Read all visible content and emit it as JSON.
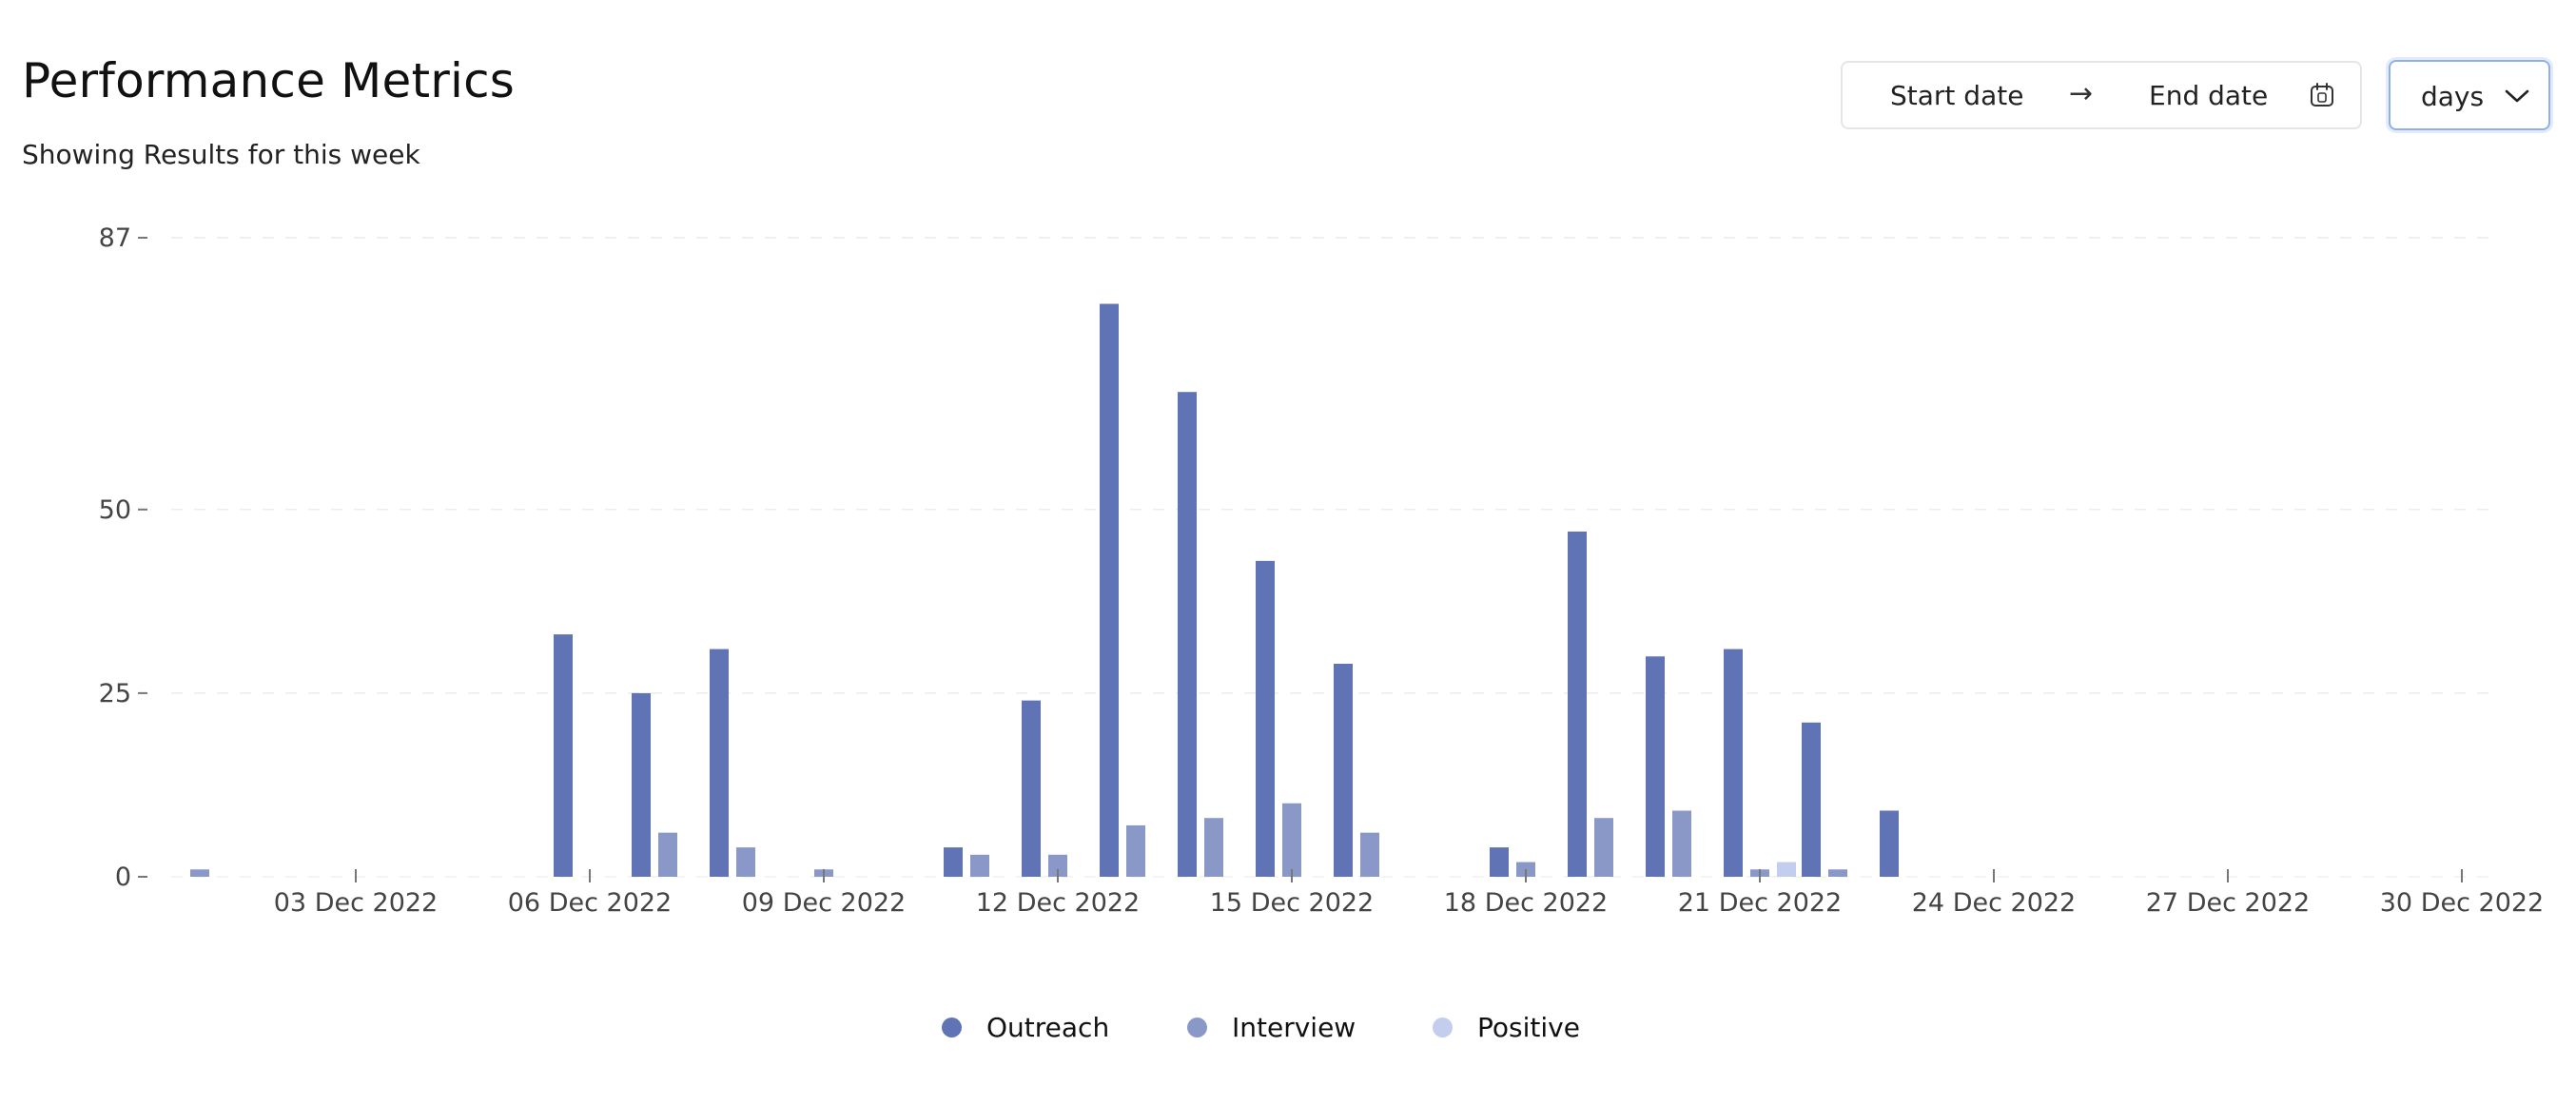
{
  "header": {
    "title": "Performance Metrics",
    "subtitle": "Showing Results for this week"
  },
  "controls": {
    "start_date": "Start date",
    "arrow": "→",
    "end_date": "End date",
    "calendar_icon": "calendar-icon",
    "granularity": "days",
    "dropdown_icon": "chevron-down-icon",
    "accent_border": "#8fb0ea"
  },
  "chart_data": {
    "type": "bar",
    "x": [
      "01 Dec 2022",
      "02 Dec 2022",
      "03 Dec 2022",
      "04 Dec 2022",
      "05 Dec 2022",
      "06 Dec 2022",
      "07 Dec 2022",
      "08 Dec 2022",
      "09 Dec 2022",
      "10 Dec 2022",
      "11 Dec 2022",
      "12 Dec 2022",
      "13 Dec 2022",
      "14 Dec 2022",
      "15 Dec 2022",
      "16 Dec 2022",
      "17 Dec 2022",
      "18 Dec 2022",
      "19 Dec 2022",
      "20 Dec 2022",
      "21 Dec 2022",
      "22 Dec 2022",
      "23 Dec 2022",
      "24 Dec 2022",
      "25 Dec 2022",
      "26 Dec 2022",
      "27 Dec 2022",
      "28 Dec 2022",
      "29 Dec 2022",
      "30 Dec 2022",
      "31 Dec 2022"
    ],
    "series": [
      {
        "name": "Outreach",
        "color": "#6073b4",
        "values": [
          0,
          0,
          0,
          0,
          0,
          33,
          25,
          31,
          0,
          0,
          4,
          24,
          78,
          66,
          43,
          29,
          0,
          4,
          47,
          30,
          31,
          21,
          9,
          0,
          0,
          0,
          0,
          0,
          0,
          0,
          0
        ]
      },
      {
        "name": "Interview",
        "color": "#8a98c8",
        "values": [
          1,
          0,
          0,
          0,
          0,
          0,
          6,
          4,
          1,
          0,
          3,
          3,
          7,
          8,
          10,
          6,
          0,
          2,
          8,
          9,
          1,
          1,
          0,
          0,
          0,
          0,
          0,
          0,
          0,
          0,
          0
        ]
      },
      {
        "name": "Positive",
        "color": "#c3cdee",
        "values": [
          0,
          0,
          0,
          0,
          0,
          0,
          0,
          0,
          0,
          0,
          0,
          0,
          0,
          0,
          0,
          0,
          0,
          0,
          0,
          0,
          2,
          0,
          0,
          0,
          0,
          0,
          0,
          0,
          0,
          0,
          0
        ]
      }
    ],
    "x_ticks": [
      "03 Dec 2022",
      "06 Dec 2022",
      "09 Dec 2022",
      "12 Dec 2022",
      "15 Dec 2022",
      "18 Dec 2022",
      "21 Dec 2022",
      "24 Dec 2022",
      "27 Dec 2022",
      "30 Dec 2022"
    ],
    "y_ticks": [
      0,
      25,
      50,
      87
    ],
    "ylim": [
      0,
      87
    ],
    "grid": true,
    "legend_position": "bottom-center",
    "title": "",
    "xlabel": "",
    "ylabel": ""
  }
}
